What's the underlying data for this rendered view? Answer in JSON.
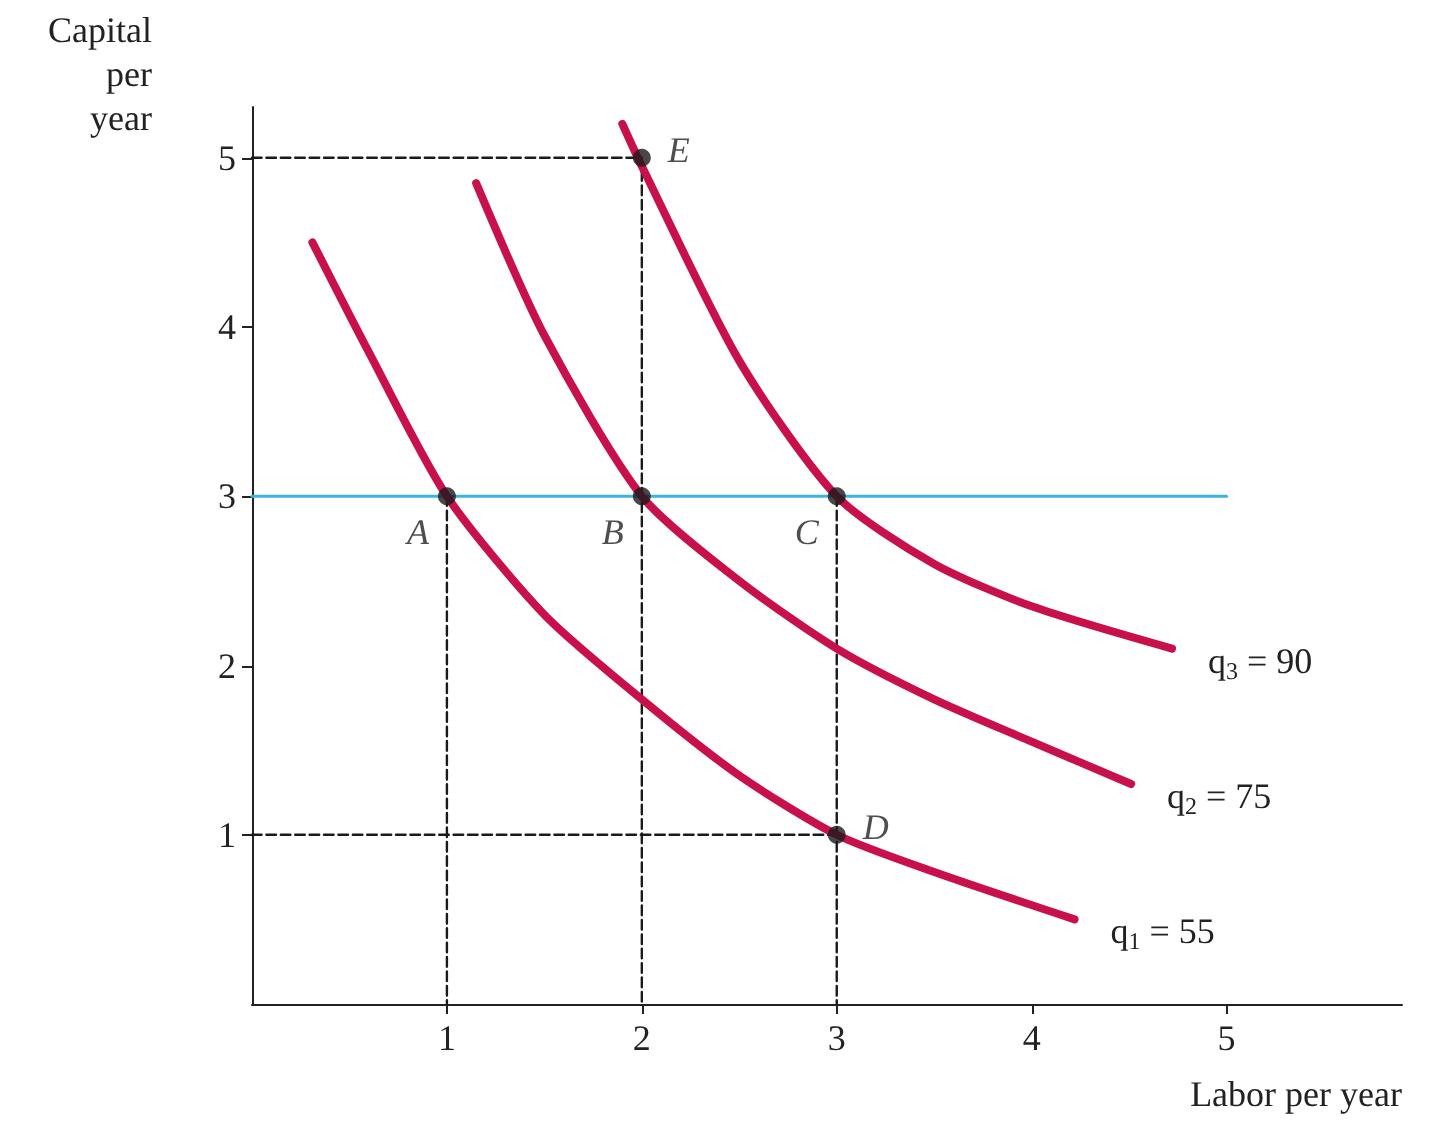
{
  "chart_data": {
    "type": "line",
    "xlabel": "Labor per year",
    "ylabel": "Capital\nper\nyear",
    "xlim": [
      0,
      5.9
    ],
    "ylim": [
      0,
      5.3
    ],
    "xticks": [
      1,
      2,
      3,
      4,
      5
    ],
    "yticks": [
      1,
      2,
      3,
      4,
      5
    ],
    "grid": false,
    "legend": false,
    "marker": "none",
    "line_style": "solid",
    "series": [
      {
        "name": "q$_{1}$ = 55",
        "color": "#c8104a",
        "x": [
          0.31,
          0.6,
          1,
          1.5,
          2,
          2.5,
          3,
          3.5,
          4.22
        ],
        "values": [
          4.5,
          3.85,
          3,
          2.3,
          1.8,
          1.35,
          1,
          0.78,
          0.5
        ]
      },
      {
        "name": "q$_{2}$ = 75",
        "color": "#c8104a",
        "x": [
          1.15,
          1.5,
          2,
          2.5,
          3,
          3.5,
          4,
          4.51
        ],
        "values": [
          4.85,
          3.95,
          3,
          2.5,
          2.1,
          1.8,
          1.55,
          1.3
        ]
      },
      {
        "name": "q$_{3}$ = 90",
        "color": "#c8104a",
        "x": [
          1.9,
          2,
          2.5,
          3,
          3.5,
          4,
          4.72
        ],
        "values": [
          5.2,
          4.95,
          3.8,
          3,
          2.6,
          2.35,
          2.1
        ]
      },
      {
        "color": "#3bb4e0",
        "x": [
          0,
          5
        ],
        "values": [
          3,
          3
        ]
      },
      {
        "color": "#1a1a1a",
        "line_style": "dashed",
        "x": [
          0,
          2,
          2
        ],
        "values": [
          5,
          5,
          0
        ]
      },
      {
        "color": "#1a1a1a",
        "line_style": "dashed",
        "x": [
          0,
          3
        ],
        "values": [
          1,
          1
        ]
      },
      {
        "color": "#1a1a1a",
        "line_style": "dashed",
        "x": [
          1,
          1
        ],
        "values": [
          3,
          0
        ]
      },
      {
        "color": "#1a1a1a",
        "line_style": "dashed",
        "x": [
          3,
          3
        ],
        "values": [
          3,
          0
        ]
      },
      {
        "type": "scatter",
        "color": "#1a1a1a",
        "marker": "circle",
        "x": [
          1,
          2,
          3,
          3,
          2
        ],
        "values": [
          3,
          3,
          3,
          1,
          5
        ]
      }
    ],
    "annotations": [
      {
        "text": "A",
        "x": 1,
        "y": 3
      },
      {
        "text": "B",
        "x": 2,
        "y": 3
      },
      {
        "text": "C",
        "x": 3,
        "y": 3
      },
      {
        "text": "D",
        "x": 3,
        "y": 1
      },
      {
        "text": "E",
        "x": 2,
        "y": 5
      }
    ]
  }
}
